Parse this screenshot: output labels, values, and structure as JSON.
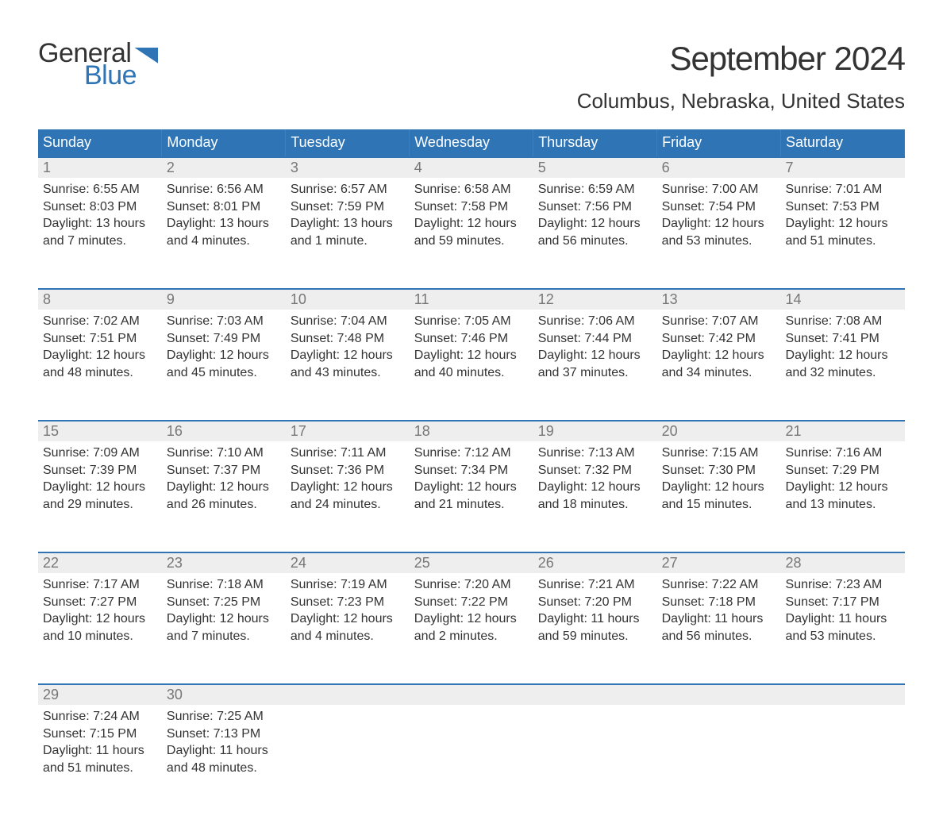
{
  "brand": {
    "line1": "General",
    "line2": "Blue"
  },
  "header": {
    "month_title": "September 2024",
    "location": "Columbus, Nebraska, United States"
  },
  "colors": {
    "accent": "#2f75b5",
    "header_bg": "#2f75b5",
    "header_text": "#ffffff",
    "daynum_bg": "#eeeeee",
    "daynum_text": "#777777",
    "body_text": "#333333",
    "page_bg": "#ffffff"
  },
  "day_names": [
    "Sunday",
    "Monday",
    "Tuesday",
    "Wednesday",
    "Thursday",
    "Friday",
    "Saturday"
  ],
  "weeks": [
    [
      {
        "n": "1",
        "sunrise": "Sunrise: 6:55 AM",
        "sunset": "Sunset: 8:03 PM",
        "day1": "Daylight: 13 hours",
        "day2": "and 7 minutes."
      },
      {
        "n": "2",
        "sunrise": "Sunrise: 6:56 AM",
        "sunset": "Sunset: 8:01 PM",
        "day1": "Daylight: 13 hours",
        "day2": "and 4 minutes."
      },
      {
        "n": "3",
        "sunrise": "Sunrise: 6:57 AM",
        "sunset": "Sunset: 7:59 PM",
        "day1": "Daylight: 13 hours",
        "day2": "and 1 minute."
      },
      {
        "n": "4",
        "sunrise": "Sunrise: 6:58 AM",
        "sunset": "Sunset: 7:58 PM",
        "day1": "Daylight: 12 hours",
        "day2": "and 59 minutes."
      },
      {
        "n": "5",
        "sunrise": "Sunrise: 6:59 AM",
        "sunset": "Sunset: 7:56 PM",
        "day1": "Daylight: 12 hours",
        "day2": "and 56 minutes."
      },
      {
        "n": "6",
        "sunrise": "Sunrise: 7:00 AM",
        "sunset": "Sunset: 7:54 PM",
        "day1": "Daylight: 12 hours",
        "day2": "and 53 minutes."
      },
      {
        "n": "7",
        "sunrise": "Sunrise: 7:01 AM",
        "sunset": "Sunset: 7:53 PM",
        "day1": "Daylight: 12 hours",
        "day2": "and 51 minutes."
      }
    ],
    [
      {
        "n": "8",
        "sunrise": "Sunrise: 7:02 AM",
        "sunset": "Sunset: 7:51 PM",
        "day1": "Daylight: 12 hours",
        "day2": "and 48 minutes."
      },
      {
        "n": "9",
        "sunrise": "Sunrise: 7:03 AM",
        "sunset": "Sunset: 7:49 PM",
        "day1": "Daylight: 12 hours",
        "day2": "and 45 minutes."
      },
      {
        "n": "10",
        "sunrise": "Sunrise: 7:04 AM",
        "sunset": "Sunset: 7:48 PM",
        "day1": "Daylight: 12 hours",
        "day2": "and 43 minutes."
      },
      {
        "n": "11",
        "sunrise": "Sunrise: 7:05 AM",
        "sunset": "Sunset: 7:46 PM",
        "day1": "Daylight: 12 hours",
        "day2": "and 40 minutes."
      },
      {
        "n": "12",
        "sunrise": "Sunrise: 7:06 AM",
        "sunset": "Sunset: 7:44 PM",
        "day1": "Daylight: 12 hours",
        "day2": "and 37 minutes."
      },
      {
        "n": "13",
        "sunrise": "Sunrise: 7:07 AM",
        "sunset": "Sunset: 7:42 PM",
        "day1": "Daylight: 12 hours",
        "day2": "and 34 minutes."
      },
      {
        "n": "14",
        "sunrise": "Sunrise: 7:08 AM",
        "sunset": "Sunset: 7:41 PM",
        "day1": "Daylight: 12 hours",
        "day2": "and 32 minutes."
      }
    ],
    [
      {
        "n": "15",
        "sunrise": "Sunrise: 7:09 AM",
        "sunset": "Sunset: 7:39 PM",
        "day1": "Daylight: 12 hours",
        "day2": "and 29 minutes."
      },
      {
        "n": "16",
        "sunrise": "Sunrise: 7:10 AM",
        "sunset": "Sunset: 7:37 PM",
        "day1": "Daylight: 12 hours",
        "day2": "and 26 minutes."
      },
      {
        "n": "17",
        "sunrise": "Sunrise: 7:11 AM",
        "sunset": "Sunset: 7:36 PM",
        "day1": "Daylight: 12 hours",
        "day2": "and 24 minutes."
      },
      {
        "n": "18",
        "sunrise": "Sunrise: 7:12 AM",
        "sunset": "Sunset: 7:34 PM",
        "day1": "Daylight: 12 hours",
        "day2": "and 21 minutes."
      },
      {
        "n": "19",
        "sunrise": "Sunrise: 7:13 AM",
        "sunset": "Sunset: 7:32 PM",
        "day1": "Daylight: 12 hours",
        "day2": "and 18 minutes."
      },
      {
        "n": "20",
        "sunrise": "Sunrise: 7:15 AM",
        "sunset": "Sunset: 7:30 PM",
        "day1": "Daylight: 12 hours",
        "day2": "and 15 minutes."
      },
      {
        "n": "21",
        "sunrise": "Sunrise: 7:16 AM",
        "sunset": "Sunset: 7:29 PM",
        "day1": "Daylight: 12 hours",
        "day2": "and 13 minutes."
      }
    ],
    [
      {
        "n": "22",
        "sunrise": "Sunrise: 7:17 AM",
        "sunset": "Sunset: 7:27 PM",
        "day1": "Daylight: 12 hours",
        "day2": "and 10 minutes."
      },
      {
        "n": "23",
        "sunrise": "Sunrise: 7:18 AM",
        "sunset": "Sunset: 7:25 PM",
        "day1": "Daylight: 12 hours",
        "day2": "and 7 minutes."
      },
      {
        "n": "24",
        "sunrise": "Sunrise: 7:19 AM",
        "sunset": "Sunset: 7:23 PM",
        "day1": "Daylight: 12 hours",
        "day2": "and 4 minutes."
      },
      {
        "n": "25",
        "sunrise": "Sunrise: 7:20 AM",
        "sunset": "Sunset: 7:22 PM",
        "day1": "Daylight: 12 hours",
        "day2": "and 2 minutes."
      },
      {
        "n": "26",
        "sunrise": "Sunrise: 7:21 AM",
        "sunset": "Sunset: 7:20 PM",
        "day1": "Daylight: 11 hours",
        "day2": "and 59 minutes."
      },
      {
        "n": "27",
        "sunrise": "Sunrise: 7:22 AM",
        "sunset": "Sunset: 7:18 PM",
        "day1": "Daylight: 11 hours",
        "day2": "and 56 minutes."
      },
      {
        "n": "28",
        "sunrise": "Sunrise: 7:23 AM",
        "sunset": "Sunset: 7:17 PM",
        "day1": "Daylight: 11 hours",
        "day2": "and 53 minutes."
      }
    ],
    [
      {
        "n": "29",
        "sunrise": "Sunrise: 7:24 AM",
        "sunset": "Sunset: 7:15 PM",
        "day1": "Daylight: 11 hours",
        "day2": "and 51 minutes."
      },
      {
        "n": "30",
        "sunrise": "Sunrise: 7:25 AM",
        "sunset": "Sunset: 7:13 PM",
        "day1": "Daylight: 11 hours",
        "day2": "and 48 minutes."
      },
      {
        "empty": true
      },
      {
        "empty": true
      },
      {
        "empty": true
      },
      {
        "empty": true
      },
      {
        "empty": true
      }
    ]
  ]
}
